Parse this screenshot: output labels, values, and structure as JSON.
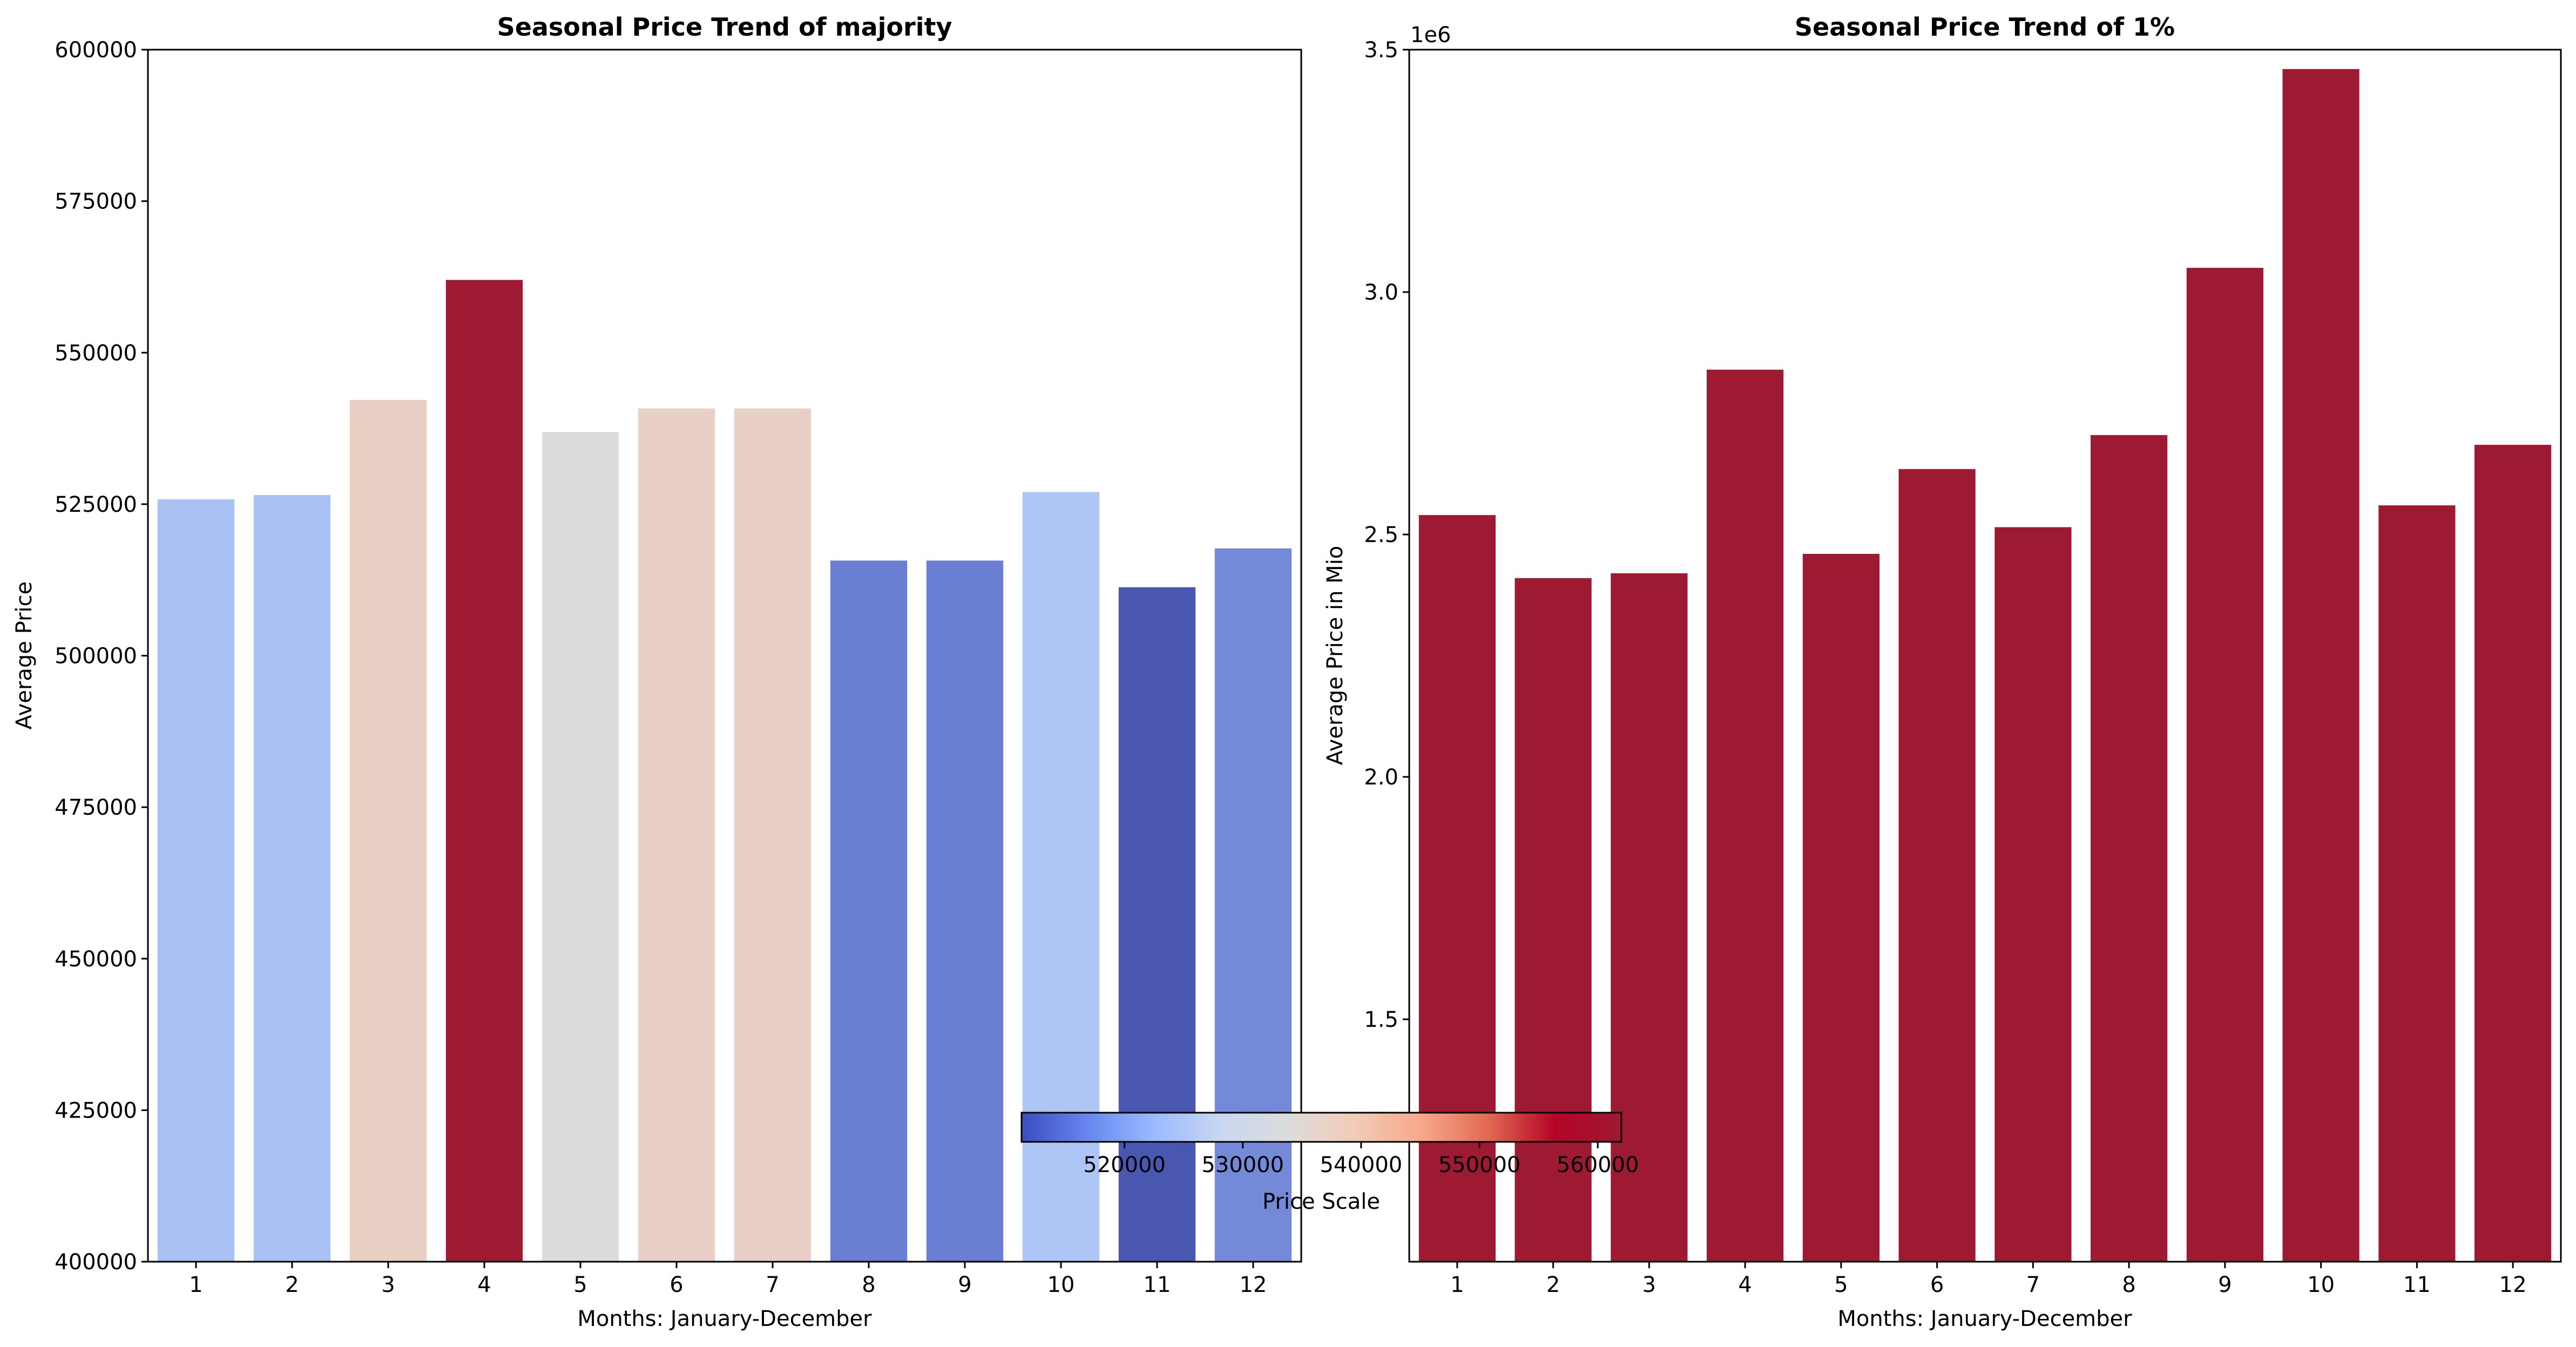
{
  "colors": {
    "dark_red": "#9e1a32",
    "frame": "#000000",
    "colormap": [
      "#3b4cc0",
      "#6788ee",
      "#9abbff",
      "#c9d7f0",
      "#dddcdc",
      "#f2cbb7",
      "#f7a889",
      "#e26952",
      "#b40426",
      "#9e1a32"
    ]
  },
  "chart_data": [
    {
      "type": "bar",
      "title": "Seasonal Price Trend of majority",
      "xlabel": "Months: January-December",
      "ylabel": "Average Price",
      "categories": [
        "1",
        "2",
        "3",
        "4",
        "5",
        "6",
        "7",
        "8",
        "9",
        "10",
        "11",
        "12"
      ],
      "values": [
        525800,
        526500,
        542200,
        562000,
        536900,
        540800,
        540800,
        515700,
        515700,
        527000,
        511300,
        517700
      ],
      "bar_colors": [
        "#a9c1f3",
        "#a9c1f3",
        "#e8cfc4",
        "#9e1a32",
        "#dcdcdc",
        "#e8d0c6",
        "#e8d0c6",
        "#6a7fd3",
        "#6a7fd3",
        "#adc6f5",
        "#4a57b1",
        "#748ad8"
      ],
      "ylim": [
        400000,
        600000
      ],
      "yticks": [
        400000,
        425000,
        450000,
        475000,
        500000,
        525000,
        550000,
        575000,
        600000
      ],
      "ytick_labels": [
        "400000",
        "425000",
        "450000",
        "475000",
        "500000",
        "525000",
        "550000",
        "575000",
        "600000"
      ],
      "grid": false
    },
    {
      "type": "bar",
      "title": "Seasonal Price Trend of 1%",
      "xlabel": "Months: January-December",
      "ylabel": "Average Price in Mio",
      "y_offset_label": "1e6",
      "categories": [
        "1",
        "2",
        "3",
        "4",
        "5",
        "6",
        "7",
        "8",
        "9",
        "10",
        "11",
        "12"
      ],
      "values": [
        2.54,
        2.41,
        2.42,
        2.84,
        2.46,
        2.635,
        2.515,
        2.705,
        3.05,
        3.46,
        2.56,
        2.685
      ],
      "bar_color": "#9e1a32",
      "ylim": [
        1.0,
        3.5
      ],
      "yticks": [
        1.5,
        2.0,
        2.5,
        3.0,
        3.5
      ],
      "ytick_labels": [
        "1.5",
        "2.0",
        "2.5",
        "3.0",
        "3.5"
      ],
      "grid": false
    }
  ],
  "colorbar": {
    "label": "Price Scale",
    "range": [
      511300,
      562000
    ],
    "ticks": [
      520000,
      530000,
      540000,
      550000,
      560000
    ],
    "tick_labels": [
      "520000",
      "530000",
      "540000",
      "550000",
      "560000"
    ],
    "orientation": "horizontal"
  }
}
